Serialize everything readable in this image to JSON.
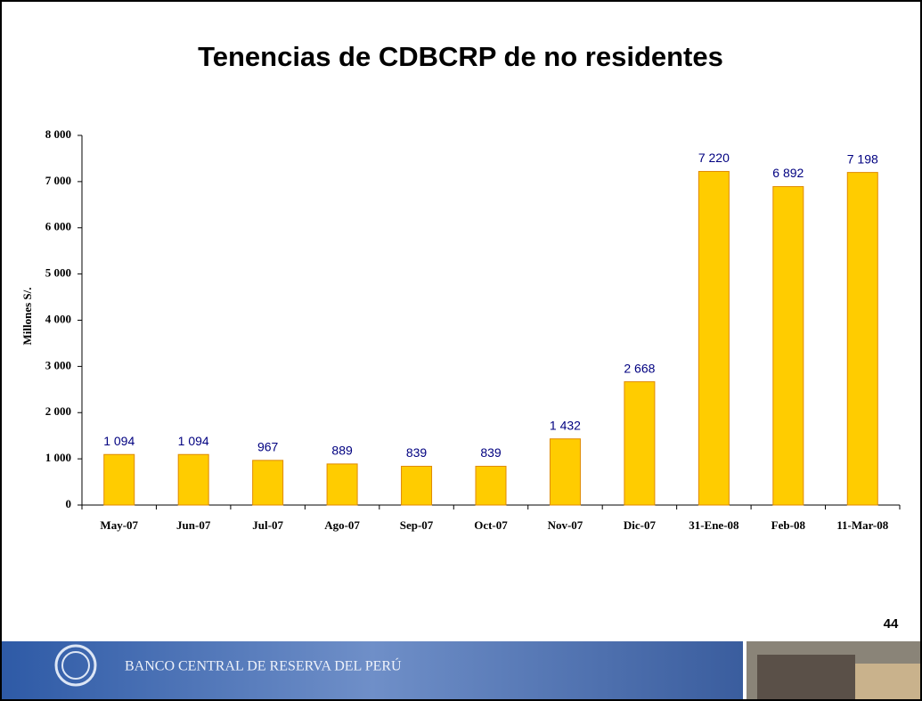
{
  "chart_data": {
    "type": "bar",
    "title": "Tenencias de CDBCRP de no residentes",
    "y_label": "Millones S/.",
    "categories": [
      "May-07",
      "Jun-07",
      "Jul-07",
      "Ago-07",
      "Sep-07",
      "Oct-07",
      "Nov-07",
      "Dic-07",
      "31-Ene-08",
      "Feb-08",
      "11-Mar-08"
    ],
    "values": [
      1094,
      1094,
      967,
      889,
      839,
      839,
      1432,
      2668,
      7220,
      6892,
      7198
    ],
    "value_labels": [
      "1 094",
      "1 094",
      "967",
      "889",
      "839",
      "839",
      "1 432",
      "2 668",
      "7 220",
      "6 892",
      "7 198"
    ],
    "color": "#ffcc00",
    "ylim": [
      0,
      8000
    ],
    "yticks": [
      0,
      {
        "value": 1000,
        "label": "1 000"
      },
      {
        "value": 2000,
        "label": "2 000"
      },
      {
        "value": 3000,
        "label": "3 000"
      },
      {
        "value": 4000,
        "label": "4 000"
      },
      {
        "value": 5000,
        "label": "5 000"
      },
      {
        "value": 6000,
        "label": "6 000"
      },
      {
        "value": 7000,
        "label": "7 000"
      },
      {
        "value": 8000,
        "label": "8 000"
      }
    ],
    "grid": false
  },
  "page_number": "44",
  "footer": "BANCO CENTRAL DE RESERVA DEL PERÚ"
}
